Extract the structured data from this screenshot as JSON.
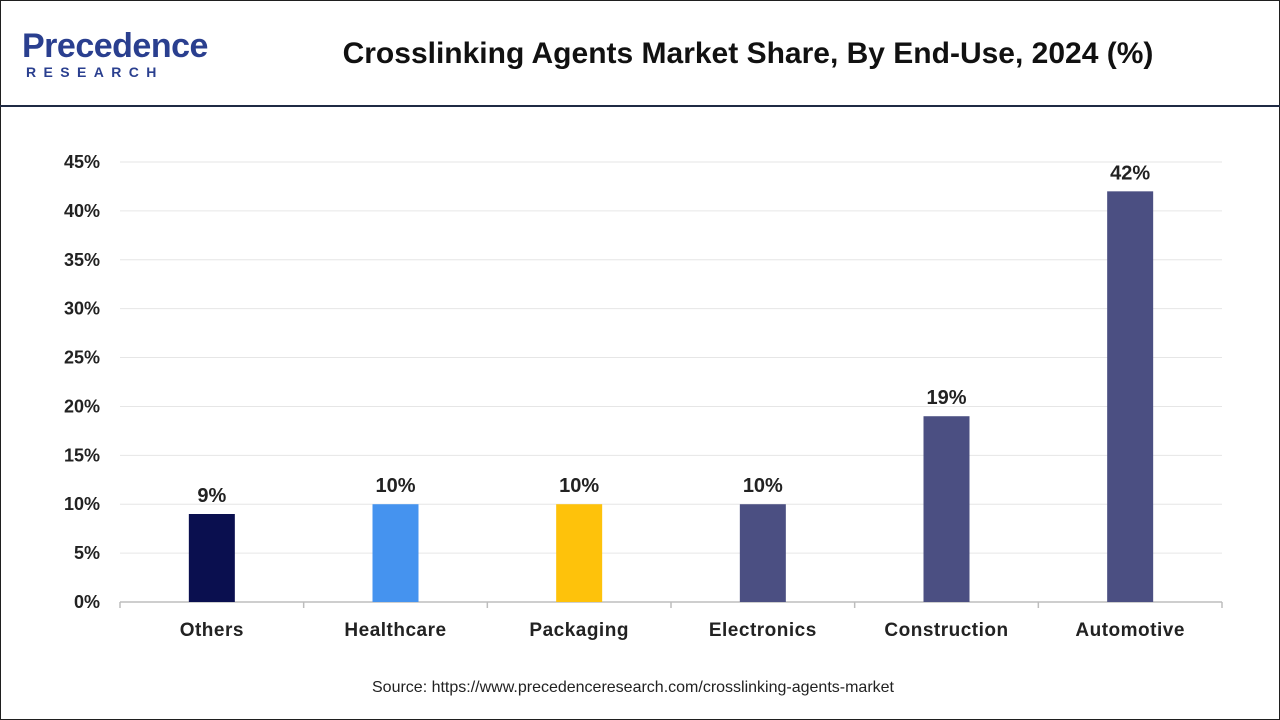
{
  "header": {
    "logo_main": "Precedence",
    "logo_sub": "RESEARCH",
    "title": "Crosslinking Agents Market Share, By End-Use, 2024 (%)"
  },
  "footer": {
    "source": "Source: https://www.precedenceresearch.com/crosslinking-agents-market"
  },
  "colors": {
    "others": "#0a0f4f",
    "healthcare": "#4593ef",
    "packaging": "#fec20b",
    "electronics": "#4b4f82",
    "construction": "#4b4f82",
    "automotive": "#4b4f82",
    "brand": "#2a3f8f"
  },
  "chart_data": {
    "type": "bar",
    "title": "Crosslinking Agents Market Share, By End-Use, 2024 (%)",
    "categories": [
      "Others",
      "Healthcare",
      "Packaging",
      "Electronics",
      "Construction",
      "Automotive"
    ],
    "values": [
      9,
      10,
      10,
      10,
      19,
      42
    ],
    "value_labels": [
      "9%",
      "10%",
      "10%",
      "10%",
      "19%",
      "42%"
    ],
    "bar_colors": [
      "#0a0f4f",
      "#4593ef",
      "#fec20b",
      "#4b4f82",
      "#4b4f82",
      "#4b4f82"
    ],
    "ylim": [
      0,
      45
    ],
    "yticks": [
      0,
      5,
      10,
      15,
      20,
      25,
      30,
      35,
      40,
      45
    ],
    "ytick_labels": [
      "0%",
      "5%",
      "10%",
      "15%",
      "20%",
      "25%",
      "30%",
      "35%",
      "40%",
      "45%"
    ],
    "xlabel": "",
    "ylabel": "",
    "grid": true,
    "legend": "none"
  }
}
